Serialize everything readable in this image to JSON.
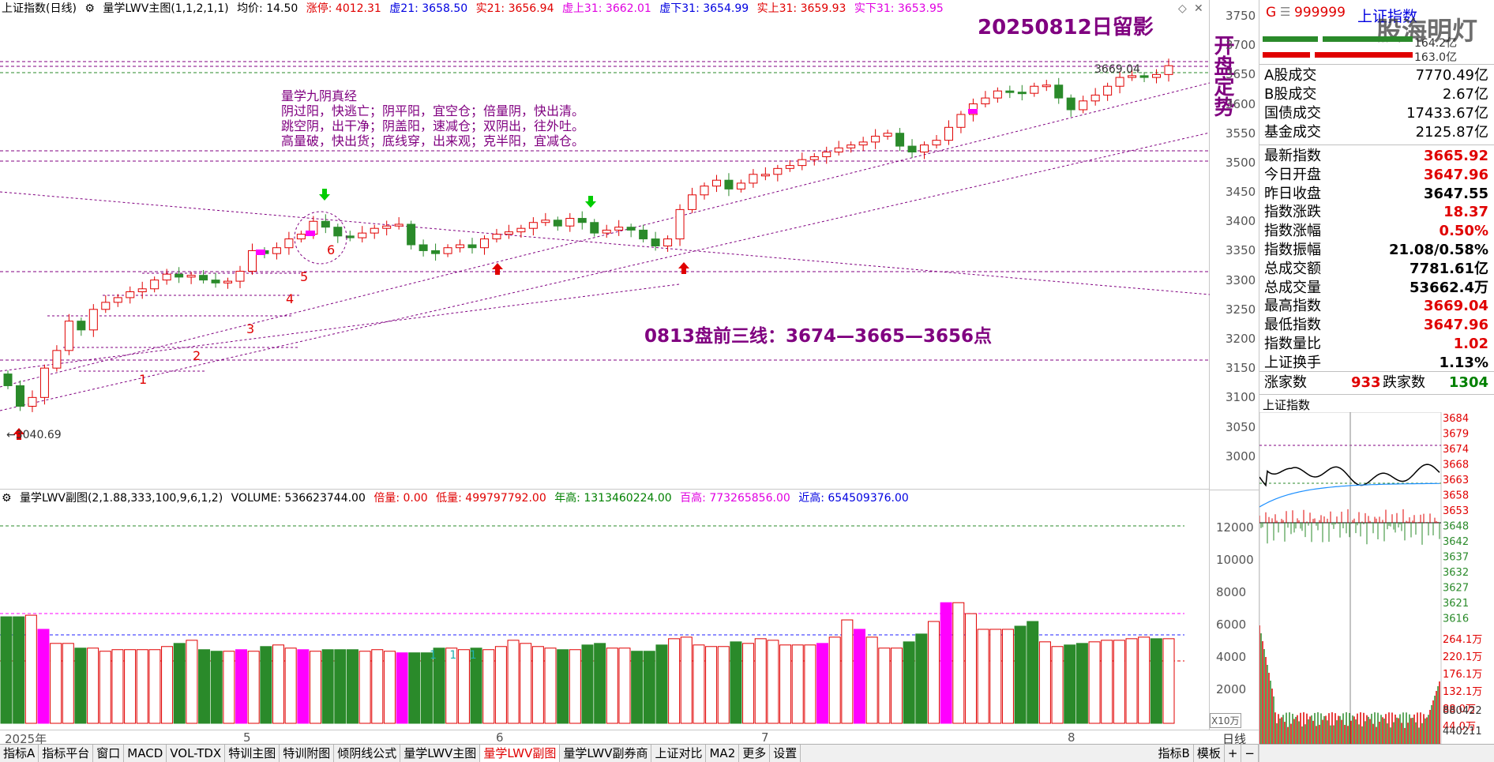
{
  "main_header": {
    "title": "上证指数(日线)",
    "indicator": "量学LWV主图(1,1,2,1,1)",
    "avg_label": "均价: 14.50",
    "limit_up": "涨停: 4012.31",
    "xu21": "虚21: 3658.50",
    "shi21": "实21: 3656.94",
    "xushang31": "虚上31: 3662.01",
    "xuxia31": "虚下31: 3654.99",
    "shishang31": "实上31: 3659.93",
    "shixia31": "实下31: 3653.95"
  },
  "annotations": {
    "date_note": "20250812日留影",
    "side_note": "开盘定势",
    "poem_title": "量学九阴真经",
    "poem_lines": [
      "阴过阳，快逃亡；阴平阳，宜空仓；倍量阴，快出清。",
      "跳空阴，出干净；阴盖阳，速减仓；双阴出，往外吐。",
      "高量破，快出货；底线穿，出来观；克半阳，宜减仓。"
    ],
    "three_lines": "0813盘前三线：3674—3665—3656点",
    "high_label": "3669.04",
    "low_label": "3040.69",
    "markers": [
      "1",
      "2",
      "3",
      "4",
      "5",
      "6"
    ],
    "sub_marker": "1 1 1"
  },
  "main_yaxis": [
    "3750",
    "3700",
    "3650",
    "3600",
    "3550",
    "3500",
    "3450",
    "3400",
    "3350",
    "3300",
    "3250",
    "3200",
    "3150",
    "3100",
    "3050",
    "3000"
  ],
  "sub_header": {
    "indicator": "量学LWV副图(2,1.88,333,100,9,6,1,2)",
    "volume": "VOLUME: 536623744.00",
    "beiliang": "倍量: 0.00",
    "diliang": "低量: 499797792.00",
    "niangao": "年高: 1313460224.00",
    "baigao": "百高: 773265856.00",
    "jingao": "近高: 654509376.00"
  },
  "sub_yaxis": [
    "12000",
    "10000",
    "8000",
    "6000",
    "4000",
    "2000"
  ],
  "sub_unit": "X10万",
  "time_axis": [
    "2025年",
    "5",
    "6",
    "7",
    "8"
  ],
  "time_axis_right": "日线",
  "bottom_tabs": [
    "指标A",
    "指标平台",
    "窗口",
    "MACD",
    "VOL-TDX",
    "特训主图",
    "特训附图",
    "倾阴线公式",
    "量学LWV主图",
    "量学LWV副图",
    "量学LWV副券商",
    "上证对比",
    "MA2",
    "更多",
    "设置"
  ],
  "bottom_tabs_active": "量学LWV副图",
  "bottom_tabs_right": [
    "指标B",
    "模板",
    "+",
    "−"
  ],
  "info": {
    "code": "999999",
    "name": "上证指数",
    "g_label": "G",
    "watermark": "股海明灯",
    "bar_values": [
      "164.2亿",
      "163.0亿"
    ],
    "rows1": [
      {
        "label": "A股成交",
        "value": "7770.49亿"
      },
      {
        "label": "B股成交",
        "value": "2.67亿"
      },
      {
        "label": "国债成交",
        "value": "17433.67亿"
      },
      {
        "label": "基金成交",
        "value": "2125.87亿"
      }
    ],
    "rows2": [
      {
        "label": "最新指数",
        "value": "3665.92",
        "color": "#e00000"
      },
      {
        "label": "今日开盘",
        "value": "3647.96",
        "color": "#e00000"
      },
      {
        "label": "昨日收盘",
        "value": "3647.55",
        "color": "#000000"
      },
      {
        "label": "指数涨跌",
        "value": "18.37",
        "color": "#e00000"
      },
      {
        "label": "指数涨幅",
        "value": "0.50%",
        "color": "#e00000"
      },
      {
        "label": "指数振幅",
        "value": "21.08/0.58%",
        "color": "#000000"
      },
      {
        "label": "总成交额",
        "value": "7781.61亿",
        "color": "#000000"
      },
      {
        "label": "总成交量",
        "value": "53662.4万",
        "color": "#000000"
      },
      {
        "label": "最高指数",
        "value": "3669.04",
        "color": "#e00000"
      },
      {
        "label": "最低指数",
        "value": "3647.96",
        "color": "#e00000"
      },
      {
        "label": "指数量比",
        "value": "1.02",
        "color": "#e00000"
      },
      {
        "label": "上证换手",
        "value": "1.13%",
        "color": "#000000"
      }
    ],
    "updown": {
      "up_label": "涨家数",
      "up_value": "933",
      "down_label": "跌家数",
      "down_value": "1304"
    },
    "intraday_title": "上证指数",
    "intraday_yaxis": [
      "3684",
      "3679",
      "3674",
      "3668",
      "3663",
      "3658",
      "3653",
      "3648",
      "3642",
      "3637",
      "3632",
      "3627",
      "3621",
      "3616"
    ],
    "intraday_vol_axis": [
      "264.1万",
      "220.1万",
      "176.1万",
      "132.1万",
      "88.0万",
      "44.0万"
    ],
    "intraday_vol_axis2": [
      "880422",
      "440211"
    ]
  },
  "colors": {
    "up": "#e00000",
    "down": "#2a8a2a",
    "magenta": "#ff00ff",
    "purple": "#800080",
    "green_arrow": "#00cc00"
  }
}
